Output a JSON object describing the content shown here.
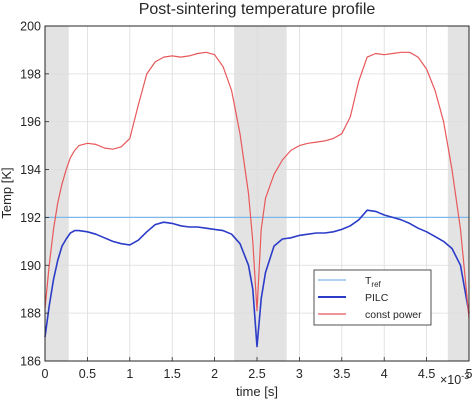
{
  "chart_data": {
    "type": "line",
    "title": "Post-sintering temperature profile",
    "xlabel": "time [s]",
    "x_exponent_label": "×10",
    "x_exponent_power": "-3",
    "ylabel": "Temp [K]",
    "xlim": [
      0,
      0.005
    ],
    "ylim": [
      186,
      200
    ],
    "xticks": [
      0,
      0.0005,
      0.001,
      0.0015,
      0.002,
      0.0025,
      0.003,
      0.0035,
      0.004,
      0.0045,
      0.005
    ],
    "xtick_labels": [
      "0",
      "0.5",
      "1",
      "1.5",
      "2",
      "2.5",
      "3",
      "3.5",
      "4",
      "4.5",
      "5"
    ],
    "yticks": [
      186,
      188,
      190,
      192,
      194,
      196,
      198,
      200
    ],
    "ytick_labels": [
      "186",
      "188",
      "190",
      "192",
      "194",
      "196",
      "198",
      "200"
    ],
    "grid": true,
    "legend_position": "bottom-right",
    "shaded_regions": [
      [
        0,
        0.00028
      ],
      [
        0.00223,
        0.00285
      ],
      [
        0.00475,
        0.005
      ]
    ],
    "shade_color": "#e3e3e3",
    "series": [
      {
        "name": "T",
        "name_sub": "ref",
        "color": "#7db8e8",
        "x": [
          0,
          0.005
        ],
        "values": [
          192.0,
          192.0
        ]
      },
      {
        "name": "PILC",
        "color": "#2c3cc8",
        "x": [
          0,
          5e-05,
          0.0001,
          0.00015,
          0.0002,
          0.00025,
          0.0003,
          0.00035,
          0.0004,
          0.0005,
          0.0006,
          0.0007,
          0.0008,
          0.0009,
          0.001,
          0.0011,
          0.0012,
          0.0013,
          0.0014,
          0.0015,
          0.0016,
          0.0017,
          0.0018,
          0.0019,
          0.002,
          0.0021,
          0.0022,
          0.0023,
          0.0024,
          0.00245,
          0.0025,
          0.00255,
          0.0026,
          0.0027,
          0.0028,
          0.0029,
          0.003,
          0.0031,
          0.0032,
          0.0033,
          0.0034,
          0.0035,
          0.0036,
          0.0037,
          0.0038,
          0.0039,
          0.004,
          0.0041,
          0.0042,
          0.0043,
          0.0044,
          0.0045,
          0.0046,
          0.0047,
          0.0048,
          0.0049,
          0.005
        ],
        "values": [
          187.0,
          188.3,
          189.4,
          190.2,
          190.8,
          191.1,
          191.35,
          191.45,
          191.45,
          191.4,
          191.3,
          191.15,
          191.0,
          190.9,
          190.85,
          191.05,
          191.4,
          191.7,
          191.8,
          191.75,
          191.65,
          191.6,
          191.6,
          191.55,
          191.5,
          191.45,
          191.3,
          190.9,
          190.0,
          189.0,
          186.6,
          188.6,
          189.7,
          190.8,
          191.1,
          191.15,
          191.25,
          191.3,
          191.35,
          191.35,
          191.4,
          191.5,
          191.65,
          191.9,
          192.3,
          192.25,
          192.1,
          192.0,
          191.9,
          191.75,
          191.55,
          191.4,
          191.2,
          191.0,
          190.7,
          190.0,
          188.0
        ]
      },
      {
        "name": "const power",
        "color": "#e8585a",
        "x": [
          0,
          5e-05,
          0.0001,
          0.00015,
          0.0002,
          0.00025,
          0.0003,
          0.00035,
          0.0004,
          0.0005,
          0.0006,
          0.0007,
          0.0008,
          0.0009,
          0.001,
          0.0011,
          0.0012,
          0.0013,
          0.0014,
          0.0015,
          0.0016,
          0.0017,
          0.0018,
          0.0019,
          0.002,
          0.0021,
          0.0022,
          0.0023,
          0.0024,
          0.00245,
          0.0025,
          0.00255,
          0.0026,
          0.0027,
          0.0028,
          0.0029,
          0.003,
          0.0031,
          0.0032,
          0.0033,
          0.0034,
          0.0035,
          0.0036,
          0.0037,
          0.0038,
          0.0039,
          0.004,
          0.0041,
          0.0042,
          0.0043,
          0.0044,
          0.0045,
          0.0046,
          0.0047,
          0.0048,
          0.0049,
          0.005
        ],
        "values": [
          188.2,
          190.0,
          191.5,
          192.6,
          193.4,
          194.0,
          194.5,
          194.8,
          195.0,
          195.1,
          195.05,
          194.9,
          194.85,
          194.95,
          195.3,
          196.7,
          198.0,
          198.5,
          198.7,
          198.75,
          198.7,
          198.75,
          198.85,
          198.9,
          198.8,
          198.3,
          197.3,
          195.5,
          193.0,
          191.0,
          188.1,
          191.5,
          192.8,
          193.8,
          194.4,
          194.8,
          195.0,
          195.1,
          195.15,
          195.2,
          195.3,
          195.5,
          196.2,
          197.7,
          198.7,
          198.85,
          198.8,
          198.85,
          198.9,
          198.9,
          198.7,
          198.2,
          197.3,
          196.0,
          194.0,
          191.5,
          187.8
        ]
      }
    ]
  }
}
